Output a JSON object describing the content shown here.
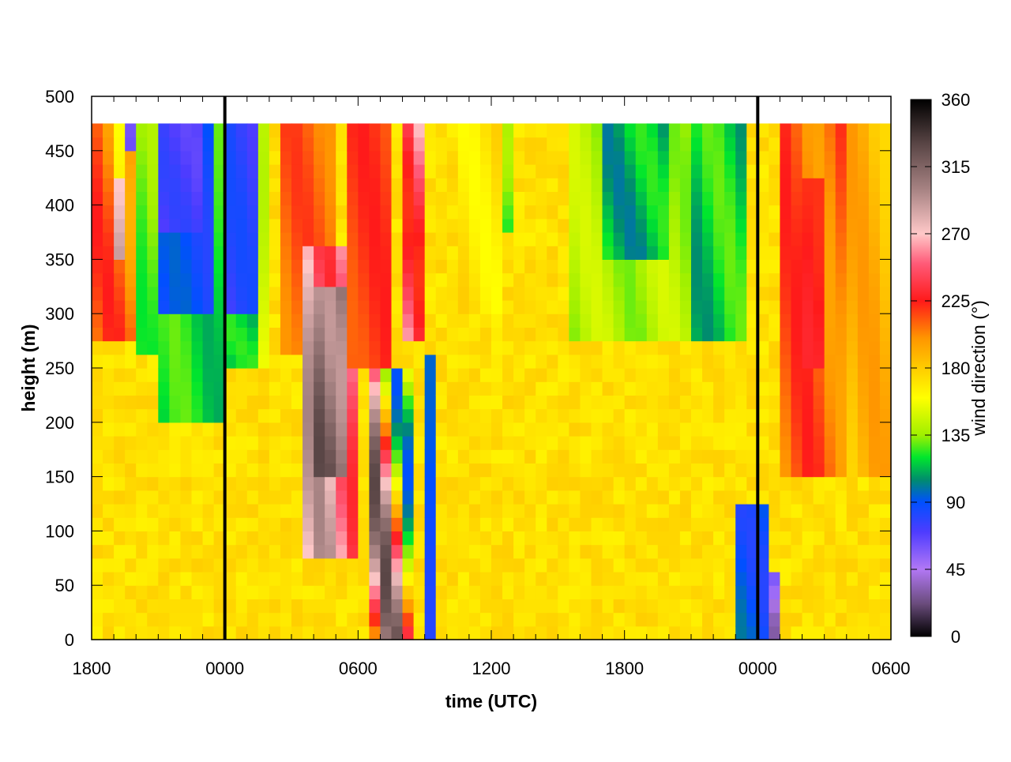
{
  "chart_data": {
    "type": "heatmap",
    "title": "",
    "xlabel": "time (UTC)",
    "ylabel": "height (m)",
    "x_unit": "hours",
    "xlim": [
      0,
      36
    ],
    "ylim": [
      0,
      500
    ],
    "x_ticks": [
      {
        "value": 0,
        "label": "1800"
      },
      {
        "value": 6,
        "label": "0000"
      },
      {
        "value": 12,
        "label": "0600"
      },
      {
        "value": 18,
        "label": "1200"
      },
      {
        "value": 24,
        "label": "1800"
      },
      {
        "value": 30,
        "label": "0000"
      },
      {
        "value": 36,
        "label": "0600"
      }
    ],
    "y_ticks": [
      0,
      50,
      100,
      150,
      200,
      250,
      300,
      350,
      400,
      450,
      500
    ],
    "vertical_lines_at_hours": [
      6,
      30
    ],
    "data_top_height": 475,
    "colorbar": {
      "label": "wind direction (°)",
      "range": [
        0,
        360
      ],
      "ticks": [
        0,
        45,
        90,
        135,
        180,
        225,
        270,
        315,
        360
      ],
      "stops": [
        {
          "value": 0,
          "color": "#000000"
        },
        {
          "value": 22,
          "color": "#6a4c7c"
        },
        {
          "value": 45,
          "color": "#b278f5"
        },
        {
          "value": 70,
          "color": "#4e3cff"
        },
        {
          "value": 90,
          "color": "#0050ff"
        },
        {
          "value": 105,
          "color": "#008c6e"
        },
        {
          "value": 120,
          "color": "#00e62d"
        },
        {
          "value": 135,
          "color": "#a0f000"
        },
        {
          "value": 160,
          "color": "#ffff00"
        },
        {
          "value": 180,
          "color": "#ffcc00"
        },
        {
          "value": 200,
          "color": "#ff9600"
        },
        {
          "value": 225,
          "color": "#ff1a1a"
        },
        {
          "value": 250,
          "color": "#ff5a78"
        },
        {
          "value": 270,
          "color": "#ffc8c8"
        },
        {
          "value": 300,
          "color": "#a68282"
        },
        {
          "value": 330,
          "color": "#5a4646"
        },
        {
          "value": 360,
          "color": "#000000"
        }
      ]
    },
    "grid": {
      "columns": 72,
      "time_step_hours": 0.5,
      "height_levels": [
        0,
        12.5,
        25,
        37.5,
        50,
        62.5,
        75,
        87.5,
        100,
        112.5,
        125,
        137.5,
        150,
        162.5,
        175,
        187.5,
        200,
        212.5,
        225,
        237.5,
        250,
        262.5,
        275,
        287.5,
        300,
        312.5,
        325,
        337.5,
        350,
        362.5,
        375,
        387.5,
        400,
        412.5,
        425,
        437.5,
        450,
        462.5
      ],
      "background_direction_deg": 172,
      "patches": [
        {
          "t": [
            0,
            2.5
          ],
          "h": [
            280,
            475
          ],
          "dir": [
            190,
            225
          ]
        },
        {
          "t": [
            1,
            1.5
          ],
          "h": [
            350,
            430
          ],
          "dir": [
            270,
            290
          ]
        },
        {
          "t": [
            1,
            1.5
          ],
          "h": [
            430,
            475
          ],
          "dir": [
            160,
            165
          ]
        },
        {
          "t": [
            1.5,
            2
          ],
          "h": [
            450,
            475
          ],
          "dir": [
            60,
            70
          ]
        },
        {
          "t": [
            2,
            4
          ],
          "h": [
            260,
            475
          ],
          "dir": [
            120,
            140
          ]
        },
        {
          "t": [
            3,
            6
          ],
          "h": [
            200,
            475
          ],
          "dir": [
            110,
            130
          ]
        },
        {
          "t": [
            3,
            5.5
          ],
          "h": [
            300,
            475
          ],
          "dir": [
            80,
            95
          ]
        },
        {
          "t": [
            3,
            5
          ],
          "h": [
            380,
            475
          ],
          "dir": [
            65,
            78
          ]
        },
        {
          "t": [
            6,
            7.5
          ],
          "h": [
            300,
            475
          ],
          "dir": [
            70,
            85
          ]
        },
        {
          "t": [
            6,
            7.5
          ],
          "h": [
            250,
            300
          ],
          "dir": [
            110,
            125
          ]
        },
        {
          "t": [
            7.5,
            8
          ],
          "h": [
            250,
            475
          ],
          "dir": [
            140,
            160
          ]
        },
        {
          "t": [
            8.5,
            11
          ],
          "h": [
            260,
            475
          ],
          "dir": [
            200,
            220
          ]
        },
        {
          "t": [
            9.5,
            12
          ],
          "h": [
            80,
            360
          ],
          "dir": [
            230,
            300
          ]
        },
        {
          "t": [
            10,
            11.5
          ],
          "h": [
            150,
            320
          ],
          "dir": [
            290,
            330
          ]
        },
        {
          "t": [
            11.5,
            13.5
          ],
          "h": [
            250,
            475
          ],
          "dir": [
            210,
            225
          ]
        },
        {
          "t": [
            12.5,
            14.5
          ],
          "h": [
            0,
            250
          ],
          "dir": [
            90,
            330
          ]
        },
        {
          "t": [
            14,
            15
          ],
          "h": [
            280,
            475
          ],
          "dir": [
            220,
            285
          ]
        },
        {
          "t": [
            15,
            15.5
          ],
          "h": [
            0,
            260
          ],
          "dir": [
            80,
            95
          ]
        },
        {
          "t": [
            16.5,
            18.5
          ],
          "h": [
            300,
            475
          ],
          "dir": [
            160,
            180
          ]
        },
        {
          "t": [
            18.5,
            19
          ],
          "h": [
            380,
            475
          ],
          "dir": [
            120,
            140
          ]
        },
        {
          "t": [
            21.5,
            27
          ],
          "h": [
            270,
            475
          ],
          "dir": [
            130,
            150
          ]
        },
        {
          "t": [
            23,
            26
          ],
          "h": [
            350,
            475
          ],
          "dir": [
            100,
            125
          ]
        },
        {
          "t": [
            27,
            29.5
          ],
          "h": [
            280,
            475
          ],
          "dir": [
            105,
            130
          ]
        },
        {
          "t": [
            29,
            30.5
          ],
          "h": [
            0,
            120
          ],
          "dir": [
            80,
            100
          ]
        },
        {
          "t": [
            30.5,
            31
          ],
          "h": [
            0,
            60
          ],
          "dir": [
            30,
            60
          ]
        },
        {
          "t": [
            31,
            34
          ],
          "h": [
            150,
            475
          ],
          "dir": [
            195,
            225
          ]
        },
        {
          "t": [
            32,
            33
          ],
          "h": [
            250,
            420
          ],
          "dir": [
            220,
            230
          ]
        },
        {
          "t": [
            34,
            36
          ],
          "h": [
            150,
            475
          ],
          "dir": [
            175,
            200
          ]
        }
      ]
    }
  }
}
